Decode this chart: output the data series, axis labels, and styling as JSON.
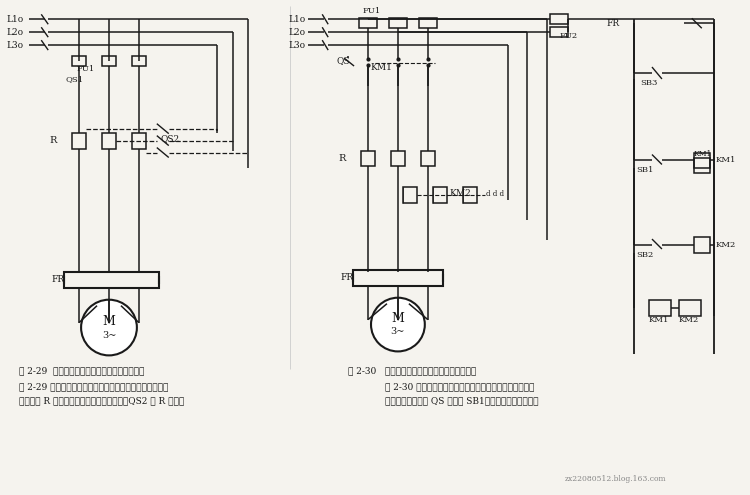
{
  "bg_color": "#f5f3ee",
  "lc": "#1a1a1a",
  "fig1_caption": "图 2-29  定子绕组串电阻降压起动手动控制线路",
  "fig2_caption": "图 2-30   定子绕组串电阻降压起动控锁控制线路",
  "desc1_line1": "图 2-29 所示为定子绕组串电阻起动手动控制线路，电源电",
  "desc1_line2": "压经电阻 R 降压后加到电动机，起动完毕，QS2 将 R 短路。",
  "desc2_line1": "图 2-30 所示为定子绕组串电阻起动按锁控制线路。该线路",
  "desc2_line2": "只需合上电源开关 QS 和按锃 SB1，电动机则自动运行。",
  "watermark": "zx22080512.blog.163.com"
}
